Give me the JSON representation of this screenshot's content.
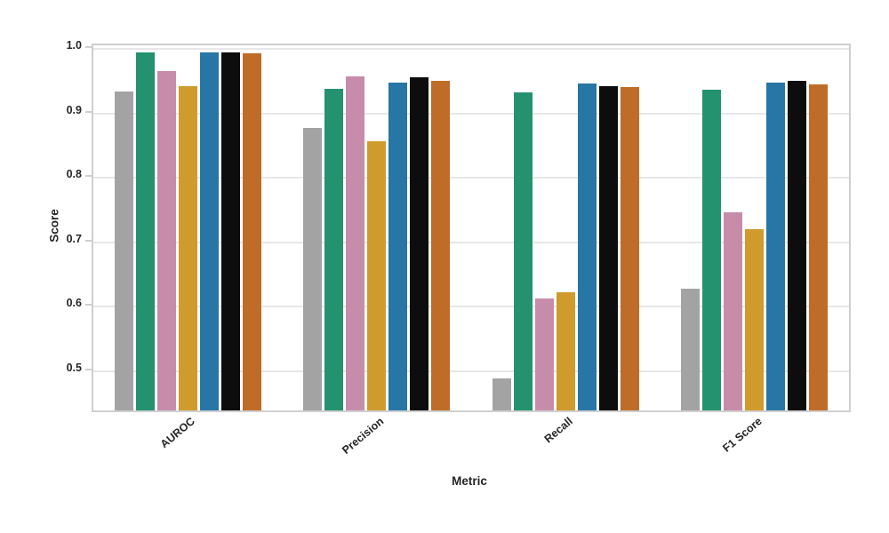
{
  "chart": {
    "ylabel": "Score",
    "xlabel": "Metric"
  },
  "chart_data": {
    "type": "bar",
    "title": "",
    "xlabel": "Metric",
    "ylabel": "Score",
    "categories": [
      "AUROC",
      "Precision",
      "Recall",
      "F1 Score"
    ],
    "series": [
      {
        "name": "gray",
        "color": "#a3a3a3",
        "values": [
          0.934,
          0.877,
          0.489,
          0.628
        ]
      },
      {
        "name": "green",
        "color": "#24926f",
        "values": [
          0.994,
          0.938,
          0.933,
          0.937
        ]
      },
      {
        "name": "pink",
        "color": "#c88cab",
        "values": [
          0.966,
          0.957,
          0.613,
          0.747
        ]
      },
      {
        "name": "gold",
        "color": "#cf9b2c",
        "values": [
          0.942,
          0.857,
          0.622,
          0.72
        ]
      },
      {
        "name": "blue",
        "color": "#2776a5",
        "values": [
          0.994,
          0.948,
          0.946,
          0.948
        ]
      },
      {
        "name": "black",
        "color": "#0d0d0e",
        "values": [
          0.994,
          0.956,
          0.942,
          0.95
        ]
      },
      {
        "name": "orange",
        "color": "#c06c29",
        "values": [
          0.993,
          0.951,
          0.941,
          0.945
        ]
      }
    ],
    "ylim": [
      0.4394,
      1.0055
    ],
    "yticks": [
      {
        "value": 1.0,
        "label": "1.0"
      },
      {
        "value": 0.9,
        "label": "0.9"
      },
      {
        "value": 0.8,
        "label": "0.8"
      },
      {
        "value": 0.7,
        "label": "0.7"
      },
      {
        "value": 0.6,
        "label": "0.6"
      },
      {
        "value": 0.5,
        "label": "0.5"
      }
    ],
    "grid": true,
    "legend": false,
    "style": {
      "background": "#ffffff",
      "grid_color": "#e7e7e7",
      "spine_color": "#cfcfcf",
      "text_color": "#262626"
    }
  }
}
